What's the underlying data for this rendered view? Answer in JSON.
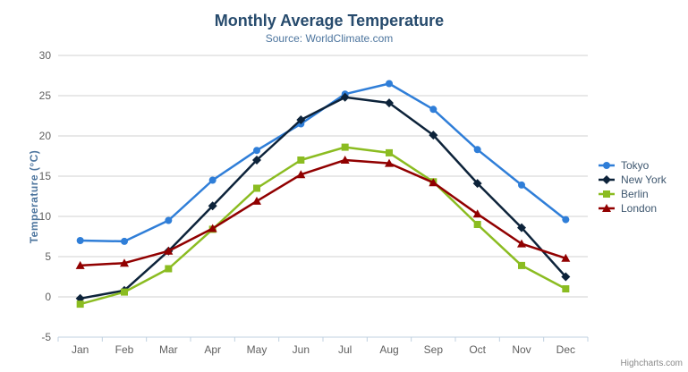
{
  "chart_data": {
    "type": "line",
    "title": "Monthly Average Temperature",
    "subtitle": "Source: WorldClimate.com",
    "xlabel": "",
    "ylabel": "Temperature (°C)",
    "categories": [
      "Jan",
      "Feb",
      "Mar",
      "Apr",
      "May",
      "Jun",
      "Jul",
      "Aug",
      "Sep",
      "Oct",
      "Nov",
      "Dec"
    ],
    "ylim": [
      -5,
      30
    ],
    "y_ticks": [
      -5,
      0,
      5,
      10,
      15,
      20,
      25,
      30
    ],
    "grid": true,
    "legend_position": "right",
    "series": [
      {
        "name": "Tokyo",
        "color": "#2f7ed8",
        "marker": "circle",
        "values": [
          7.0,
          6.9,
          9.5,
          14.5,
          18.2,
          21.5,
          25.2,
          26.5,
          23.3,
          18.3,
          13.9,
          9.6
        ]
      },
      {
        "name": "New York",
        "color": "#0d233a",
        "marker": "diamond",
        "values": [
          -0.2,
          0.8,
          5.7,
          11.3,
          17.0,
          22.0,
          24.8,
          24.1,
          20.1,
          14.1,
          8.6,
          2.5
        ]
      },
      {
        "name": "Berlin",
        "color": "#8bbc21",
        "marker": "square",
        "values": [
          -0.9,
          0.6,
          3.5,
          8.4,
          13.5,
          17.0,
          18.6,
          17.9,
          14.3,
          9.0,
          3.9,
          1.0
        ]
      },
      {
        "name": "London",
        "color": "#910000",
        "marker": "triangle",
        "values": [
          3.9,
          4.2,
          5.7,
          8.5,
          11.9,
          15.2,
          17.0,
          16.6,
          14.2,
          10.3,
          6.6,
          4.8
        ]
      }
    ],
    "colors": {
      "title": "#274b6d",
      "subtitle": "#4d759e",
      "axis_title": "#4d759e",
      "tick_label": "#606060",
      "gridline": "#d0d0d0",
      "axis_line": "#c0d0e0",
      "legend_text": "#3e576f"
    }
  },
  "export_menu": {
    "icon": "hamburger-menu-icon"
  },
  "credits": {
    "label": "Highcharts.com"
  }
}
